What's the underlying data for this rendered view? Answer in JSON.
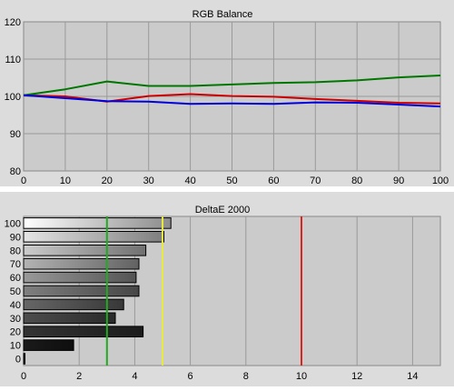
{
  "chart_data": [
    {
      "type": "line",
      "title": "RGB Balance",
      "x": [
        0,
        10,
        20,
        30,
        40,
        50,
        60,
        70,
        80,
        90,
        100
      ],
      "xlim": [
        0,
        100
      ],
      "ylim": [
        80,
        120
      ],
      "xticks": [
        "0",
        "10",
        "20",
        "30",
        "40",
        "50",
        "60",
        "70",
        "80",
        "90",
        "100"
      ],
      "yticks": [
        "80",
        "90",
        "100",
        "110",
        "120"
      ],
      "grid": true,
      "series": [
        {
          "color": "#cc0000",
          "values": [
            100.3,
            100.0,
            98.6,
            100.1,
            100.6,
            100.1,
            99.9,
            99.3,
            98.8,
            98.3,
            98.1
          ]
        },
        {
          "color": "#007700",
          "values": [
            100.3,
            101.9,
            104.0,
            102.8,
            102.8,
            103.2,
            103.6,
            103.8,
            104.3,
            105.1,
            105.6
          ]
        },
        {
          "color": "#0000dd",
          "values": [
            100.3,
            99.5,
            98.7,
            98.6,
            98.0,
            98.1,
            98.0,
            98.4,
            98.3,
            97.8,
            97.3
          ]
        }
      ]
    },
    {
      "type": "bar",
      "orientation": "horizontal",
      "title": "DeltaE 2000",
      "categories": [
        "100",
        "90",
        "80",
        "70",
        "60",
        "50",
        "40",
        "30",
        "20",
        "10",
        "0"
      ],
      "values": [
        5.3,
        5.05,
        4.4,
        4.15,
        4.05,
        4.15,
        3.6,
        3.3,
        4.3,
        1.8,
        0.05
      ],
      "xlim": [
        0,
        15
      ],
      "xticks": [
        "0",
        "2",
        "4",
        "6",
        "8",
        "10",
        "12",
        "14"
      ],
      "thresholds": [
        {
          "value": 3,
          "color": "#22aa22"
        },
        {
          "value": 5,
          "color": "#e8e840"
        },
        {
          "value": 10,
          "color": "#dd2222"
        }
      ],
      "grid": true
    }
  ]
}
